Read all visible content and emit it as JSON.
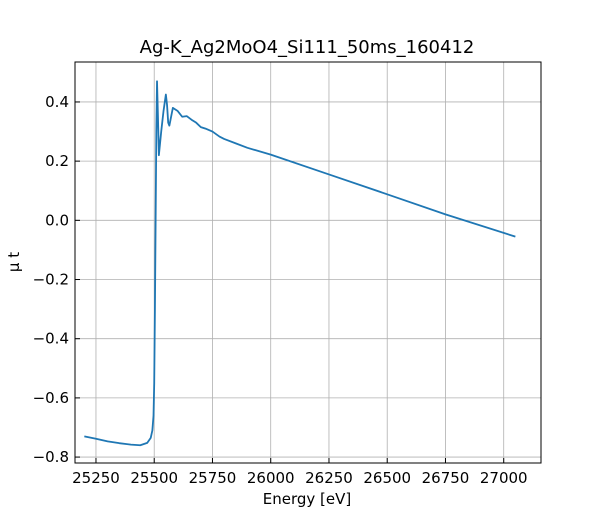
{
  "chart_data": {
    "type": "line",
    "title": "Ag-K_Ag2MoO4_Si111_50ms_160412",
    "xlabel": "Energy [eV]",
    "ylabel": "μ t",
    "xlim": [
      25160,
      27160
    ],
    "ylim": [
      -0.82,
      0.535
    ],
    "grid": true,
    "x_ticks": [
      25250,
      25500,
      25750,
      26000,
      26250,
      26500,
      26750,
      27000
    ],
    "x_tick_labels": [
      "25250",
      "25500",
      "25750",
      "26000",
      "26250",
      "26500",
      "26750",
      "27000"
    ],
    "y_ticks": [
      0.4,
      0.2,
      0.0,
      -0.2,
      -0.4,
      -0.6,
      -0.8
    ],
    "y_tick_labels": [
      "0.4",
      "0.2",
      "0.0",
      "−0.2",
      "−0.4",
      "−0.6",
      "−0.8"
    ],
    "series": [
      {
        "color": "#1f77b4",
        "x": [
          25200,
          25250,
          25300,
          25350,
          25400,
          25440,
          25470,
          25485,
          25492,
          25497,
          25500,
          25503,
          25506,
          25509,
          25512,
          25516,
          25520,
          25530,
          25540,
          25550,
          25555,
          25560,
          25565,
          25570,
          25580,
          25590,
          25600,
          25620,
          25640,
          25660,
          25680,
          25700,
          25720,
          25750,
          25780,
          25800,
          25850,
          25900,
          26000,
          26250,
          26500,
          26750,
          27050
        ],
        "y": [
          -0.73,
          -0.738,
          -0.747,
          -0.753,
          -0.758,
          -0.76,
          -0.752,
          -0.735,
          -0.71,
          -0.66,
          -0.55,
          -0.3,
          0.0,
          0.3,
          0.47,
          0.35,
          0.22,
          0.3,
          0.37,
          0.425,
          0.39,
          0.33,
          0.32,
          0.34,
          0.38,
          0.375,
          0.37,
          0.35,
          0.352,
          0.34,
          0.33,
          0.315,
          0.31,
          0.3,
          0.283,
          0.275,
          0.26,
          0.245,
          0.222,
          0.155,
          0.088,
          0.02,
          -0.055
        ]
      }
    ]
  }
}
